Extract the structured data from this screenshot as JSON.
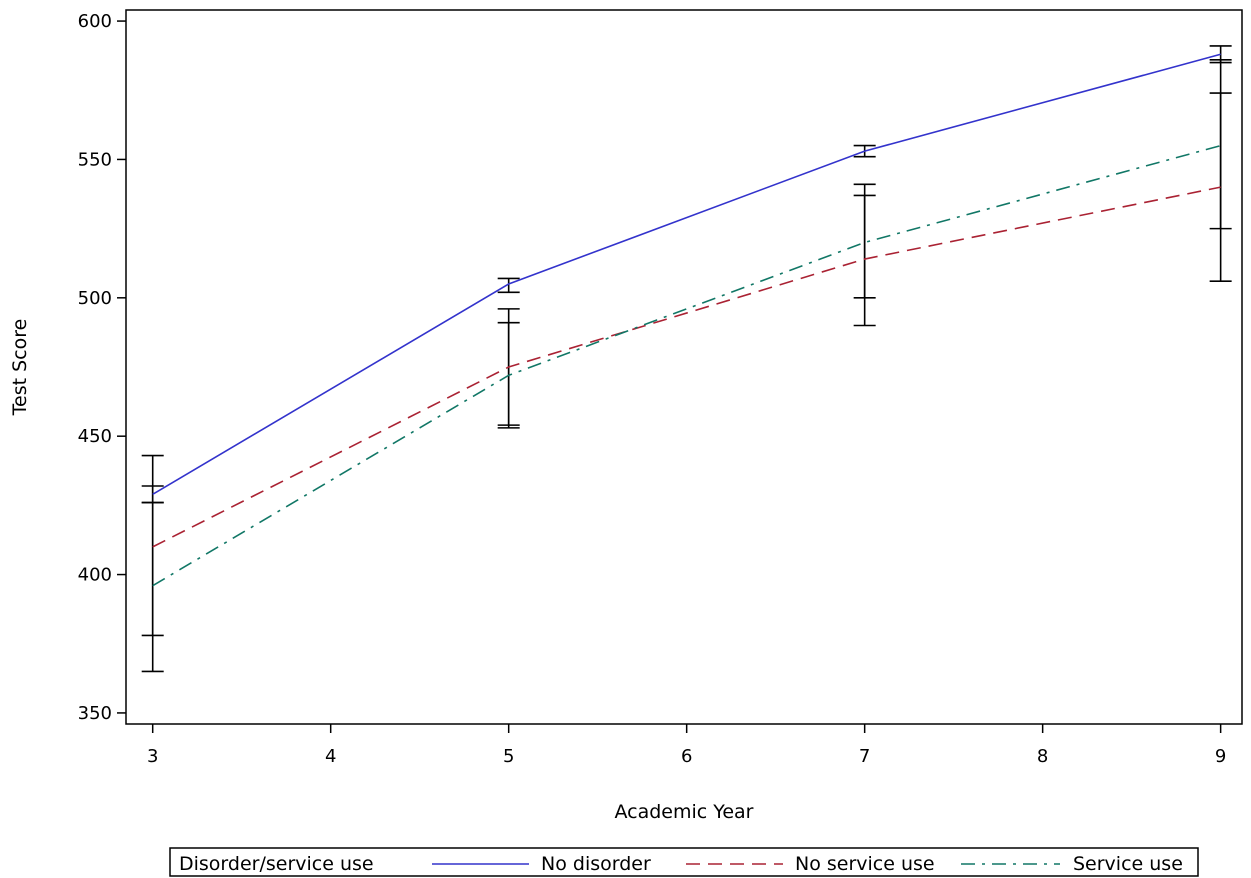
{
  "chart_data": {
    "type": "line",
    "title": "",
    "xlabel": "Academic Year",
    "ylabel": "Test Score",
    "xlim": [
      2.85,
      9.12
    ],
    "ylim": [
      346,
      604
    ],
    "x_ticks": [
      3,
      4,
      5,
      6,
      7,
      8,
      9
    ],
    "y_ticks": [
      350,
      400,
      450,
      500,
      550,
      600
    ],
    "grid": false,
    "legend": {
      "title": "Disorder/service use",
      "placement": "bottom"
    },
    "series": [
      {
        "name": "No disorder",
        "color": "#3333cc",
        "dash": "solid",
        "points": [
          {
            "x": 3,
            "y": 429,
            "lo": 426,
            "hi": 432
          },
          {
            "x": 5,
            "y": 505,
            "lo": 502,
            "hi": 507
          },
          {
            "x": 7,
            "y": 553,
            "lo": 551,
            "hi": 555
          },
          {
            "x": 9,
            "y": 588,
            "lo": 585,
            "hi": 591
          }
        ]
      },
      {
        "name": "No service use",
        "color": "#aa2233",
        "dash": "dash",
        "points": [
          {
            "x": 3,
            "y": 410,
            "lo": 378,
            "hi": 443
          },
          {
            "x": 5,
            "y": 475,
            "lo": 454,
            "hi": 496
          },
          {
            "x": 7,
            "y": 514,
            "lo": 490,
            "hi": 537
          },
          {
            "x": 9,
            "y": 540,
            "lo": 506,
            "hi": 574
          }
        ]
      },
      {
        "name": "Service use",
        "color": "#117766",
        "dash": "dashdot",
        "points": [
          {
            "x": 3,
            "y": 396,
            "lo": 365,
            "hi": 426
          },
          {
            "x": 5,
            "y": 472,
            "lo": 453,
            "hi": 491
          },
          {
            "x": 7,
            "y": 520,
            "lo": 500,
            "hi": 541
          },
          {
            "x": 9,
            "y": 555,
            "lo": 525,
            "hi": 586
          }
        ]
      }
    ]
  }
}
